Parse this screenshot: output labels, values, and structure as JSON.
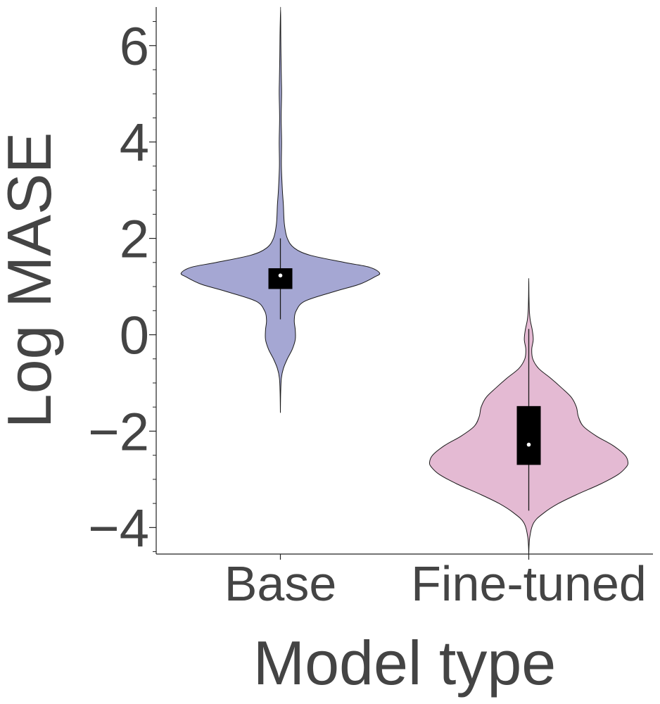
{
  "chart_data": {
    "type": "violin",
    "xlabel": "Model type",
    "ylabel": "Log MASE",
    "categories": [
      "Base",
      "Fine-tuned"
    ],
    "ylim": [
      -4.55,
      6.8
    ],
    "yticks": [
      -4,
      -2,
      0,
      2,
      4,
      6
    ],
    "ytick_labels": [
      "−4",
      "−2",
      "0",
      "2",
      "4",
      "6"
    ],
    "grid": false,
    "legend": "none",
    "series": [
      {
        "category": "Base",
        "color": "#a5a7d3",
        "density": [
          [
            -1.62,
            0.0
          ],
          [
            -1.2,
            0.003
          ],
          [
            -0.9,
            0.01
          ],
          [
            -0.7,
            0.03
          ],
          [
            -0.5,
            0.07
          ],
          [
            -0.3,
            0.12
          ],
          [
            -0.1,
            0.15
          ],
          [
            0.1,
            0.15
          ],
          [
            0.3,
            0.14
          ],
          [
            0.5,
            0.16
          ],
          [
            0.7,
            0.25
          ],
          [
            0.9,
            0.55
          ],
          [
            1.05,
            0.8
          ],
          [
            1.2,
            0.95
          ],
          [
            1.28,
            1.0
          ],
          [
            1.4,
            0.9
          ],
          [
            1.5,
            0.65
          ],
          [
            1.65,
            0.3
          ],
          [
            1.8,
            0.14
          ],
          [
            2.0,
            0.07
          ],
          [
            2.3,
            0.04
          ],
          [
            2.7,
            0.03
          ],
          [
            3.0,
            0.02
          ],
          [
            3.5,
            0.01
          ],
          [
            4.0,
            0.012
          ],
          [
            4.5,
            0.008
          ],
          [
            5.0,
            0.012
          ],
          [
            5.3,
            0.01
          ],
          [
            5.8,
            0.006
          ],
          [
            6.2,
            0.004
          ],
          [
            6.8,
            0.002
          ]
        ],
        "q1": 0.95,
        "median": 1.23,
        "q3": 1.38,
        "whisker_low": 0.32,
        "whisker_high": 2.0
      },
      {
        "category": "Fine-tuned",
        "color": "#e4bad3",
        "density": [
          [
            -4.55,
            0.0
          ],
          [
            -4.2,
            0.01
          ],
          [
            -3.9,
            0.05
          ],
          [
            -3.7,
            0.15
          ],
          [
            -3.5,
            0.3
          ],
          [
            -3.3,
            0.5
          ],
          [
            -3.1,
            0.72
          ],
          [
            -2.9,
            0.9
          ],
          [
            -2.75,
            0.98
          ],
          [
            -2.65,
            1.0
          ],
          [
            -2.5,
            0.97
          ],
          [
            -2.3,
            0.85
          ],
          [
            -2.1,
            0.68
          ],
          [
            -1.9,
            0.55
          ],
          [
            -1.7,
            0.5
          ],
          [
            -1.5,
            0.48
          ],
          [
            -1.3,
            0.43
          ],
          [
            -1.1,
            0.33
          ],
          [
            -0.9,
            0.22
          ],
          [
            -0.7,
            0.1
          ],
          [
            -0.5,
            0.04
          ],
          [
            -0.3,
            0.03
          ],
          [
            -0.1,
            0.045
          ],
          [
            0.1,
            0.035
          ],
          [
            0.3,
            0.015
          ],
          [
            0.5,
            0.006
          ],
          [
            0.8,
            0.002
          ],
          [
            1.17,
            0.0
          ]
        ],
        "q1": -2.7,
        "median": -2.28,
        "q3": -1.48,
        "whisker_low": -3.65,
        "whisker_high": 0.12
      }
    ]
  }
}
